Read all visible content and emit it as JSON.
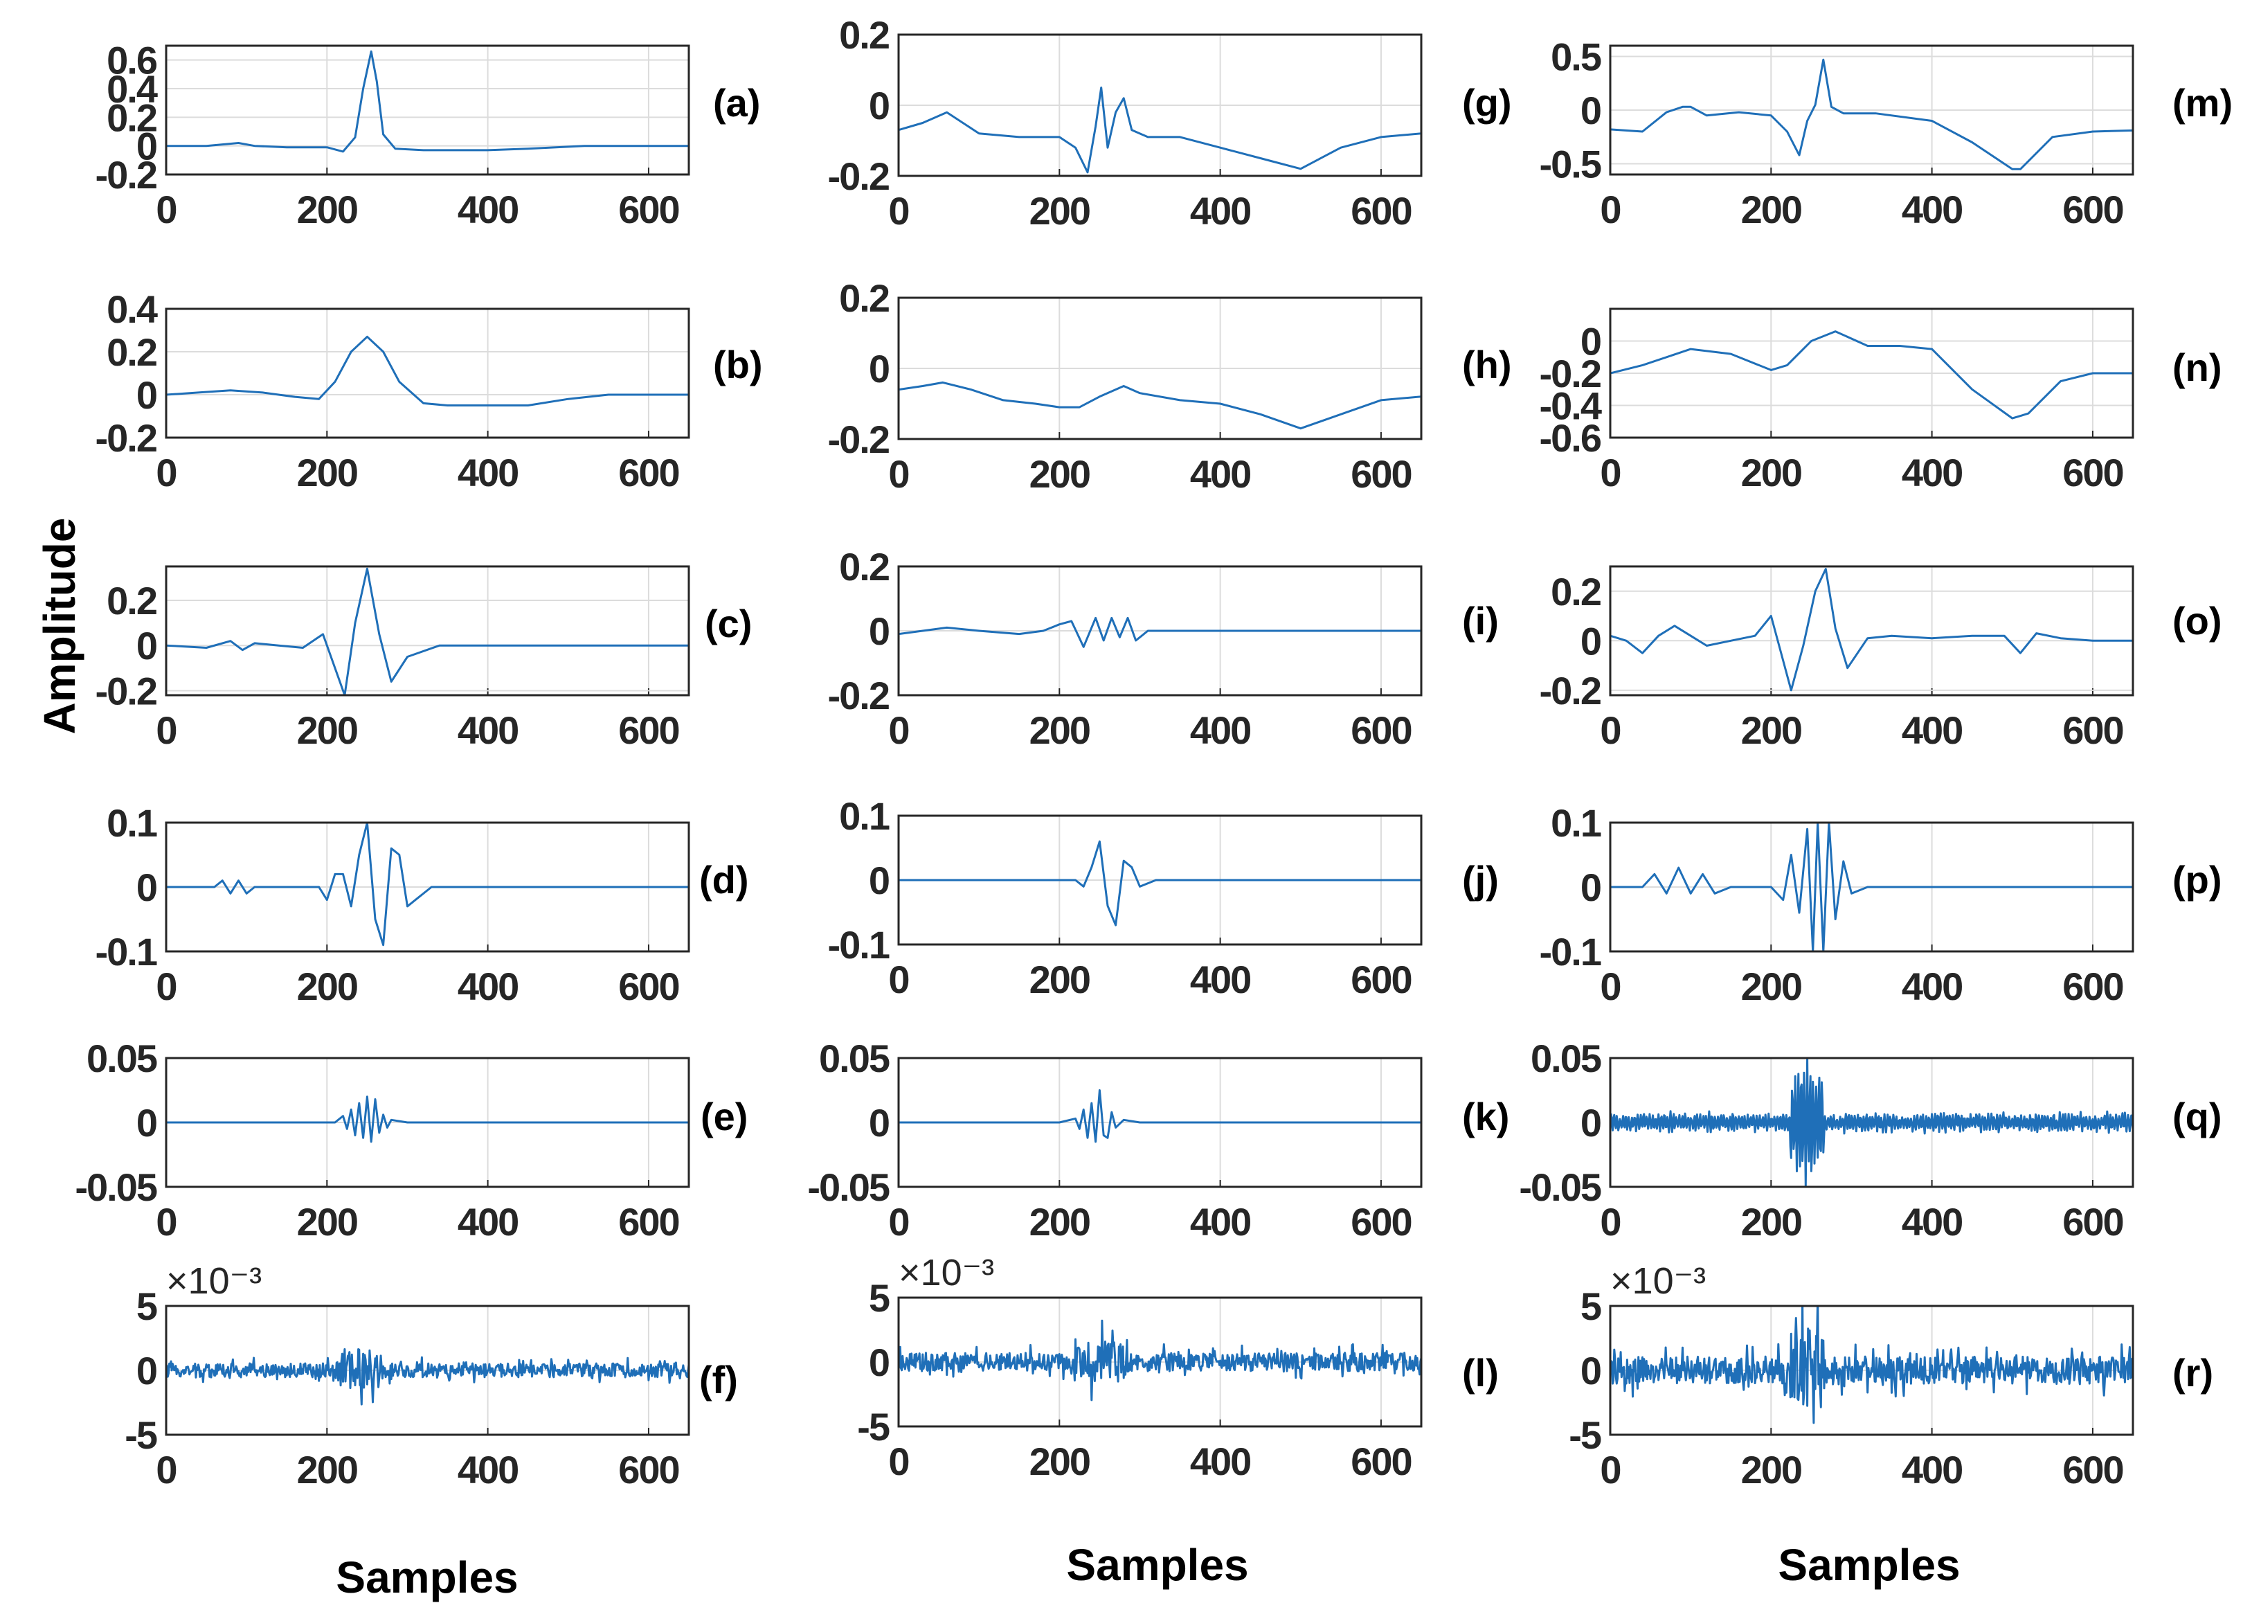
{
  "figure": {
    "ylabel": "Amplitude",
    "xlabel": "Samples",
    "line_color": "#1f6fb8",
    "grid_color": "#dcdcdc",
    "axes_color": "#262626"
  },
  "chart_data": [
    {
      "id": "a",
      "type": "line",
      "label": "(a)",
      "xlim": [
        0,
        650
      ],
      "ylim": [
        -0.2,
        0.7
      ],
      "xticks": [
        0,
        200,
        400,
        600
      ],
      "yticks": [
        -0.2,
        0,
        0.2,
        0.4,
        0.6
      ],
      "ytick_labels": [
        "-0.2",
        "0",
        "0.2",
        "0.4",
        "0.6"
      ],
      "x": [
        0,
        50,
        90,
        110,
        150,
        200,
        220,
        235,
        245,
        255,
        262,
        270,
        285,
        320,
        400,
        450,
        520,
        600,
        650
      ],
      "y": [
        0,
        0,
        0.02,
        0,
        -0.01,
        -0.01,
        -0.04,
        0.06,
        0.4,
        0.66,
        0.45,
        0.08,
        -0.02,
        -0.03,
        -0.03,
        -0.02,
        0,
        0,
        0
      ]
    },
    {
      "id": "b",
      "type": "line",
      "label": "(b)",
      "xlim": [
        0,
        650
      ],
      "ylim": [
        -0.2,
        0.4
      ],
      "xticks": [
        0,
        200,
        400,
        600
      ],
      "yticks": [
        -0.2,
        0,
        0.2,
        0.4
      ],
      "ytick_labels": [
        "-0.2",
        "0",
        "0.2",
        "0.4"
      ],
      "x": [
        0,
        40,
        80,
        120,
        160,
        190,
        210,
        230,
        250,
        270,
        290,
        320,
        350,
        400,
        450,
        500,
        550,
        600,
        650
      ],
      "y": [
        0,
        0.01,
        0.02,
        0.01,
        -0.01,
        -0.02,
        0.06,
        0.2,
        0.27,
        0.2,
        0.06,
        -0.04,
        -0.05,
        -0.05,
        -0.05,
        -0.02,
        0,
        0,
        0
      ]
    },
    {
      "id": "c",
      "type": "line",
      "label": "(c)",
      "xlim": [
        0,
        650
      ],
      "ylim": [
        -0.22,
        0.35
      ],
      "xticks": [
        0,
        200,
        400,
        600
      ],
      "yticks": [
        -0.2,
        0,
        0.2
      ],
      "ytick_labels": [
        "-0.2",
        "0",
        "0.2"
      ],
      "x": [
        0,
        50,
        80,
        95,
        110,
        140,
        170,
        195,
        210,
        222,
        235,
        250,
        265,
        280,
        300,
        340,
        400,
        450,
        520,
        600,
        650
      ],
      "y": [
        0,
        -0.01,
        0.02,
        -0.02,
        0.01,
        0,
        -0.01,
        0.05,
        -0.1,
        -0.22,
        0.1,
        0.34,
        0.05,
        -0.16,
        -0.05,
        0,
        0,
        0,
        0,
        0,
        0
      ]
    },
    {
      "id": "d",
      "type": "line",
      "label": "(d)",
      "xlim": [
        0,
        650
      ],
      "ylim": [
        -0.1,
        0.1
      ],
      "xticks": [
        0,
        200,
        400,
        600
      ],
      "yticks": [
        -0.1,
        0,
        0.1
      ],
      "ytick_labels": [
        "-0.1",
        "0",
        "0.1"
      ],
      "x": [
        0,
        60,
        70,
        80,
        90,
        100,
        110,
        150,
        190,
        200,
        210,
        220,
        230,
        240,
        250,
        260,
        270,
        280,
        290,
        300,
        310,
        330,
        400,
        450,
        520,
        600,
        650
      ],
      "y": [
        0,
        0,
        0.01,
        -0.01,
        0.01,
        -0.01,
        0,
        0,
        0,
        -0.02,
        0.02,
        0.02,
        -0.03,
        0.05,
        0.1,
        -0.05,
        -0.09,
        0.06,
        0.05,
        -0.03,
        -0.02,
        0,
        0,
        0,
        0,
        0,
        0
      ]
    },
    {
      "id": "e",
      "type": "line",
      "label": "(e)",
      "xlim": [
        0,
        650
      ],
      "ylim": [
        -0.05,
        0.05
      ],
      "xticks": [
        0,
        200,
        400,
        600
      ],
      "yticks": [
        -0.05,
        0,
        0.05
      ],
      "ytick_labels": [
        "-0.05",
        "0",
        "0.05"
      ],
      "x": [
        0,
        100,
        180,
        210,
        220,
        225,
        230,
        235,
        240,
        245,
        250,
        255,
        260,
        265,
        270,
        275,
        280,
        300,
        400,
        500,
        600,
        650
      ],
      "y": [
        0,
        0,
        0,
        0,
        0.005,
        -0.005,
        0.01,
        -0.01,
        0.015,
        -0.012,
        0.02,
        -0.015,
        0.018,
        -0.008,
        0.006,
        -0.004,
        0.002,
        0,
        0,
        0,
        0,
        0
      ]
    },
    {
      "id": "f",
      "type": "line",
      "label": "(f)",
      "xlim": [
        0,
        650
      ],
      "ylim": [
        -5,
        5
      ],
      "xticks": [
        0,
        200,
        400,
        600
      ],
      "yticks": [
        -5,
        0,
        5
      ],
      "ytick_labels": [
        "-5",
        "0",
        "5"
      ],
      "exponent_label": "×10⁻³",
      "noise": {
        "amplitude": 0.9,
        "burst_center": 240,
        "burst_amplitude": 2.0,
        "burst_width": 30
      }
    },
    {
      "id": "g",
      "type": "line",
      "label": "(g)",
      "xlim": [
        0,
        650
      ],
      "ylim": [
        -0.2,
        0.2
      ],
      "xticks": [
        0,
        200,
        400,
        600
      ],
      "yticks": [
        -0.2,
        0,
        0.2
      ],
      "ytick_labels": [
        "-0.2",
        "0",
        "0.2"
      ],
      "x": [
        0,
        30,
        60,
        100,
        150,
        200,
        220,
        235,
        245,
        252,
        260,
        270,
        280,
        290,
        310,
        350,
        400,
        450,
        500,
        550,
        600,
        650
      ],
      "y": [
        -0.07,
        -0.05,
        -0.02,
        -0.08,
        -0.09,
        -0.09,
        -0.12,
        -0.19,
        -0.06,
        0.05,
        -0.12,
        -0.02,
        0.02,
        -0.07,
        -0.09,
        -0.09,
        -0.12,
        -0.15,
        -0.18,
        -0.12,
        -0.09,
        -0.08
      ]
    },
    {
      "id": "h",
      "type": "line",
      "label": "(h)",
      "xlim": [
        0,
        650
      ],
      "ylim": [
        -0.2,
        0.2
      ],
      "xticks": [
        0,
        200,
        400,
        600
      ],
      "yticks": [
        -0.2,
        0,
        0.2
      ],
      "ytick_labels": [
        "-0.2",
        "0",
        "0.2"
      ],
      "x": [
        0,
        30,
        55,
        90,
        130,
        170,
        200,
        225,
        250,
        280,
        300,
        350,
        400,
        450,
        500,
        550,
        600,
        650
      ],
      "y": [
        -0.06,
        -0.05,
        -0.04,
        -0.06,
        -0.09,
        -0.1,
        -0.11,
        -0.11,
        -0.08,
        -0.05,
        -0.07,
        -0.09,
        -0.1,
        -0.13,
        -0.17,
        -0.13,
        -0.09,
        -0.08
      ]
    },
    {
      "id": "i",
      "type": "line",
      "label": "(i)",
      "xlim": [
        0,
        650
      ],
      "ylim": [
        -0.2,
        0.2
      ],
      "xticks": [
        0,
        200,
        400,
        600
      ],
      "yticks": [
        -0.2,
        0,
        0.2
      ],
      "ytick_labels": [
        "-0.2",
        "0",
        "0.2"
      ],
      "x": [
        0,
        30,
        60,
        100,
        150,
        180,
        200,
        215,
        230,
        245,
        255,
        265,
        275,
        285,
        295,
        310,
        350,
        400,
        450,
        500,
        550,
        600,
        650
      ],
      "y": [
        -0.01,
        0,
        0.01,
        0,
        -0.01,
        0,
        0.02,
        0.03,
        -0.05,
        0.04,
        -0.03,
        0.04,
        -0.02,
        0.04,
        -0.03,
        0,
        0,
        0,
        0,
        0,
        0,
        0,
        0
      ]
    },
    {
      "id": "j",
      "type": "line",
      "label": "(j)",
      "xlim": [
        0,
        650
      ],
      "ylim": [
        -0.1,
        0.1
      ],
      "xticks": [
        0,
        200,
        400,
        600
      ],
      "yticks": [
        -0.1,
        0,
        0.1
      ],
      "ytick_labels": [
        "-0.1",
        "0",
        "0.1"
      ],
      "x": [
        0,
        60,
        100,
        150,
        200,
        220,
        230,
        240,
        250,
        260,
        270,
        280,
        290,
        300,
        320,
        400,
        450,
        500,
        550,
        600,
        650
      ],
      "y": [
        0,
        0,
        0,
        0,
        0,
        0,
        -0.01,
        0.02,
        0.06,
        -0.04,
        -0.07,
        0.03,
        0.02,
        -0.01,
        0,
        0,
        0,
        0,
        0,
        0,
        0
      ]
    },
    {
      "id": "k",
      "type": "line",
      "label": "(k)",
      "xlim": [
        0,
        650
      ],
      "ylim": [
        -0.05,
        0.05
      ],
      "xticks": [
        0,
        200,
        400,
        600
      ],
      "yticks": [
        -0.05,
        0,
        0.05
      ],
      "ytick_labels": [
        "-0.05",
        "0",
        "0.05"
      ],
      "x": [
        0,
        100,
        200,
        220,
        225,
        230,
        235,
        240,
        245,
        250,
        255,
        260,
        265,
        270,
        280,
        300,
        400,
        500,
        600,
        650
      ],
      "y": [
        0,
        0,
        0,
        0.003,
        -0.005,
        0.01,
        -0.012,
        0.015,
        -0.015,
        0.025,
        -0.01,
        -0.012,
        0.008,
        -0.004,
        0.002,
        0,
        0,
        0,
        0,
        0
      ]
    },
    {
      "id": "l",
      "type": "line",
      "label": "(l)",
      "xlim": [
        0,
        650
      ],
      "ylim": [
        -5,
        5
      ],
      "xticks": [
        0,
        200,
        400,
        600
      ],
      "yticks": [
        -5,
        0,
        5
      ],
      "ytick_labels": [
        "-5",
        "0",
        "5"
      ],
      "exponent_label": "×10⁻³",
      "noise": {
        "amplitude": 1.2,
        "burst_center": 250,
        "burst_amplitude": 1.8,
        "burst_width": 35
      }
    },
    {
      "id": "m",
      "type": "line",
      "label": "(m)",
      "xlim": [
        0,
        650
      ],
      "ylim": [
        -0.6,
        0.6
      ],
      "xticks": [
        0,
        200,
        400,
        600
      ],
      "yticks": [
        -0.5,
        0,
        0.5
      ],
      "ytick_labels": [
        "-0.5",
        "0",
        "0.5"
      ],
      "x": [
        0,
        40,
        70,
        90,
        100,
        120,
        160,
        200,
        220,
        235,
        245,
        255,
        265,
        275,
        290,
        330,
        400,
        450,
        500,
        510,
        550,
        600,
        650
      ],
      "y": [
        -0.18,
        -0.2,
        -0.02,
        0.03,
        0.03,
        -0.05,
        -0.02,
        -0.05,
        -0.2,
        -0.42,
        -0.1,
        0.05,
        0.47,
        0.03,
        -0.03,
        -0.03,
        -0.1,
        -0.3,
        -0.55,
        -0.55,
        -0.25,
        -0.2,
        -0.19
      ]
    },
    {
      "id": "n",
      "type": "line",
      "label": "(n)",
      "xlim": [
        0,
        650
      ],
      "ylim": [
        -0.6,
        0.2
      ],
      "xticks": [
        0,
        200,
        400,
        600
      ],
      "yticks": [
        -0.6,
        -0.4,
        -0.2,
        0
      ],
      "ytick_labels": [
        "-0.6",
        "-0.4",
        "-0.2",
        "0"
      ],
      "x": [
        0,
        40,
        100,
        150,
        200,
        220,
        250,
        280,
        320,
        360,
        400,
        450,
        500,
        520,
        560,
        600,
        650
      ],
      "y": [
        -0.2,
        -0.15,
        -0.05,
        -0.08,
        -0.18,
        -0.15,
        0,
        0.06,
        -0.03,
        -0.03,
        -0.05,
        -0.3,
        -0.48,
        -0.45,
        -0.25,
        -0.2,
        -0.2
      ]
    },
    {
      "id": "o",
      "type": "line",
      "label": "(o)",
      "xlim": [
        0,
        650
      ],
      "ylim": [
        -0.22,
        0.3
      ],
      "xticks": [
        0,
        200,
        400,
        600
      ],
      "yticks": [
        -0.2,
        0,
        0.2
      ],
      "ytick_labels": [
        "-0.2",
        "0",
        "0.2"
      ],
      "x": [
        0,
        20,
        40,
        60,
        80,
        100,
        120,
        150,
        180,
        200,
        215,
        225,
        240,
        255,
        268,
        280,
        295,
        320,
        350,
        400,
        450,
        490,
        510,
        530,
        560,
        600,
        650
      ],
      "y": [
        0.02,
        0,
        -0.05,
        0.02,
        0.06,
        0.02,
        -0.02,
        0,
        0.02,
        0.1,
        -0.08,
        -0.2,
        -0.02,
        0.2,
        0.29,
        0.05,
        -0.11,
        0.01,
        0.02,
        0.01,
        0.02,
        0.02,
        -0.05,
        0.03,
        0.01,
        0,
        0
      ]
    },
    {
      "id": "p",
      "type": "line",
      "label": "(p)",
      "xlim": [
        0,
        650
      ],
      "ylim": [
        -0.1,
        0.1
      ],
      "xticks": [
        0,
        200,
        400,
        600
      ],
      "yticks": [
        -0.1,
        0,
        0.1
      ],
      "ytick_labels": [
        "-0.1",
        "0",
        "0.1"
      ],
      "x": [
        0,
        40,
        55,
        70,
        85,
        100,
        115,
        130,
        150,
        180,
        200,
        215,
        225,
        235,
        245,
        252,
        258,
        265,
        272,
        280,
        290,
        300,
        320,
        350,
        400,
        450,
        500,
        550,
        600,
        650
      ],
      "y": [
        0,
        0,
        0.02,
        -0.01,
        0.03,
        -0.01,
        0.02,
        -0.01,
        0,
        0,
        0,
        -0.02,
        0.05,
        -0.04,
        0.09,
        -0.1,
        0.1,
        -0.1,
        0.1,
        -0.05,
        0.04,
        -0.01,
        0,
        0,
        0,
        0,
        0,
        0,
        0,
        0
      ]
    },
    {
      "id": "q",
      "type": "line",
      "label": "(q)",
      "xlim": [
        0,
        650
      ],
      "ylim": [
        -0.05,
        0.05
      ],
      "xticks": [
        0,
        200,
        400,
        600
      ],
      "yticks": [
        -0.05,
        0,
        0.05
      ],
      "ytick_labels": [
        "-0.05",
        "0",
        "0.05"
      ],
      "noise": {
        "amplitude": 0.007,
        "burst_center": 245,
        "burst_amplitude": 0.05,
        "burst_width": 22,
        "oscillate": true
      }
    },
    {
      "id": "r",
      "type": "line",
      "label": "(r)",
      "xlim": [
        0,
        650
      ],
      "ylim": [
        -5,
        5
      ],
      "xticks": [
        0,
        200,
        400,
        600
      ],
      "yticks": [
        -5,
        0,
        5
      ],
      "ytick_labels": [
        "-5",
        "0",
        "5"
      ],
      "exponent_label": "×10⁻³",
      "noise": {
        "amplitude": 1.8,
        "burst_center": 245,
        "burst_amplitude": 4.5,
        "burst_width": 22
      }
    }
  ]
}
